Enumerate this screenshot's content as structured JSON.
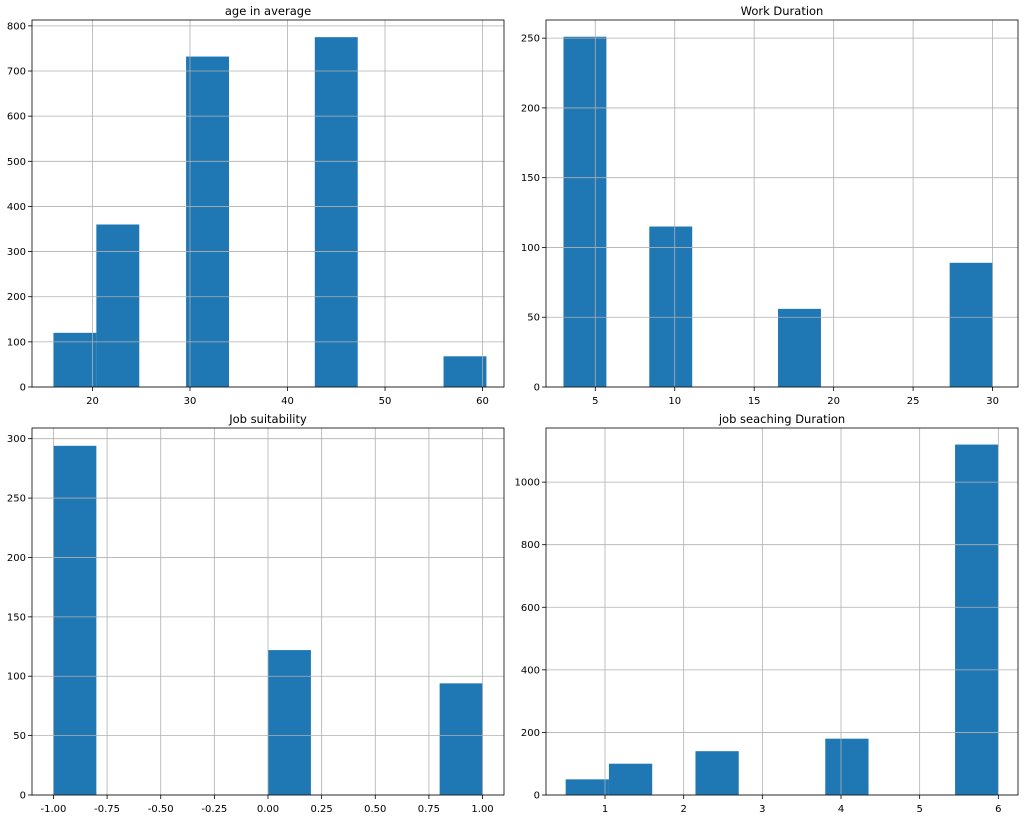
{
  "colors": {
    "bar": "#1f77b4"
  },
  "chart_data": [
    {
      "type": "bar",
      "title": "age in average",
      "xlim": [
        13.8,
        62.2
      ],
      "ylim": [
        0,
        813
      ],
      "xticks": [
        20,
        30,
        40,
        50,
        60
      ],
      "yticks": [
        0,
        100,
        200,
        300,
        400,
        500,
        600,
        700,
        800
      ],
      "grid": true,
      "bars": [
        {
          "x0": 16.0,
          "x1": 20.4,
          "value": 120
        },
        {
          "x0": 20.4,
          "x1": 24.8,
          "value": 360
        },
        {
          "x0": 29.6,
          "x1": 34.0,
          "value": 732
        },
        {
          "x0": 42.8,
          "x1": 47.2,
          "value": 775
        },
        {
          "x0": 56.0,
          "x1": 60.4,
          "value": 68
        }
      ]
    },
    {
      "type": "bar",
      "title": "Work Duration",
      "xlim": [
        1.9,
        31.6
      ],
      "ylim": [
        0,
        263
      ],
      "xticks": [
        5,
        10,
        15,
        20,
        25,
        30
      ],
      "yticks": [
        0,
        50,
        100,
        150,
        200,
        250
      ],
      "grid": true,
      "bars": [
        {
          "x0": 3.0,
          "x1": 5.7,
          "value": 251
        },
        {
          "x0": 8.4,
          "x1": 11.1,
          "value": 115
        },
        {
          "x0": 16.5,
          "x1": 19.2,
          "value": 56
        },
        {
          "x0": 27.3,
          "x1": 30.0,
          "value": 89
        }
      ]
    },
    {
      "type": "bar",
      "title": "Job suitability",
      "xlim": [
        -1.1,
        1.1
      ],
      "ylim": [
        0,
        309
      ],
      "xticks": [
        "-1.00",
        "-0.75",
        "-0.50",
        "-0.25",
        "0.00",
        "0.25",
        "0.50",
        "0.75",
        "1.00"
      ],
      "yticks": [
        0,
        50,
        100,
        150,
        200,
        250,
        300
      ],
      "grid": true,
      "bars": [
        {
          "x0": -1.0,
          "x1": -0.8,
          "value": 294
        },
        {
          "x0": 0.0,
          "x1": 0.2,
          "value": 122
        },
        {
          "x0": 0.8,
          "x1": 1.0,
          "value": 94
        }
      ]
    },
    {
      "type": "bar",
      "title": "job seaching Duration",
      "xlim": [
        0.25,
        6.25
      ],
      "ylim": [
        0,
        1173
      ],
      "xticks": [
        1,
        2,
        3,
        4,
        5,
        6
      ],
      "yticks": [
        0,
        200,
        400,
        600,
        800,
        1000
      ],
      "grid": true,
      "bars": [
        {
          "x0": 0.5,
          "x1": 1.05,
          "value": 50
        },
        {
          "x0": 1.05,
          "x1": 1.6,
          "value": 100
        },
        {
          "x0": 2.15,
          "x1": 2.7,
          "value": 140
        },
        {
          "x0": 3.8,
          "x1": 4.35,
          "value": 180
        },
        {
          "x0": 5.45,
          "x1": 6.0,
          "value": 1120
        }
      ]
    }
  ]
}
